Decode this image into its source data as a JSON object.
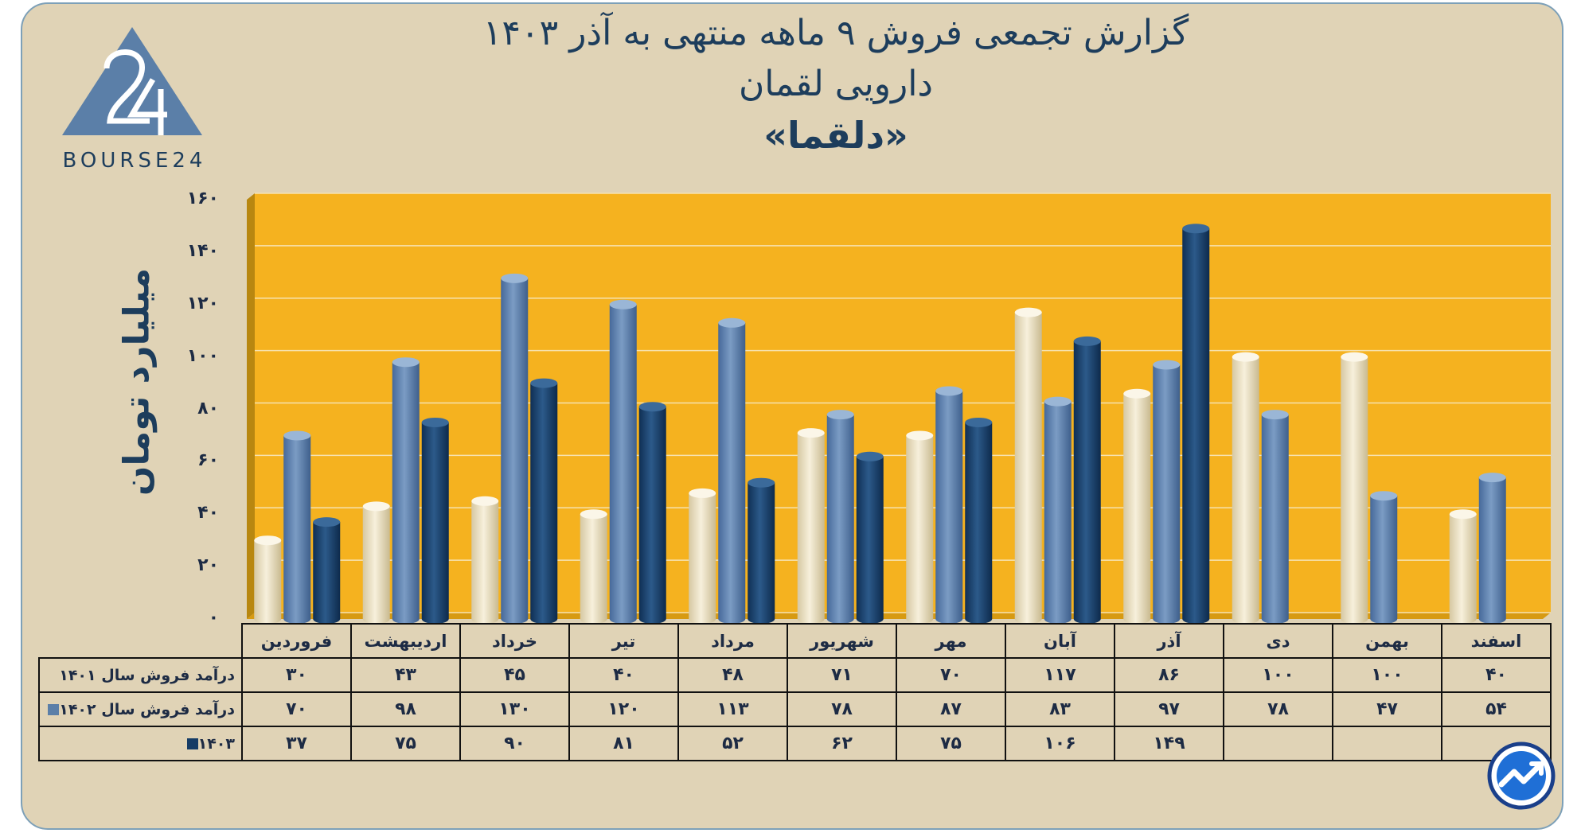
{
  "title": {
    "line1": "گزارش تجمعی فروش ۹ ماهه منتهی به آذر ۱۴۰۳",
    "line2": "دارویی لقمان",
    "line3": "«دلقما»"
  },
  "logo": {
    "text": "BOURSE24",
    "mark": "24",
    "icon": "triangle-logo-icon"
  },
  "colors": {
    "background": "#e0d3b6",
    "plot": "#f5b21f",
    "s1401": "#ece1c2",
    "s1402": "#5b7fa8",
    "s1403": "#153c66"
  },
  "chart_data": {
    "type": "bar",
    "ylabel": "میلیارد تومان",
    "ylim": [
      0,
      160
    ],
    "yticks": [
      "۰",
      "۲۰",
      "۴۰",
      "۶۰",
      "۸۰",
      "۱۰۰",
      "۱۲۰",
      "۱۴۰",
      "۱۶۰"
    ],
    "grid": true,
    "categories": [
      "فروردین",
      "اردیبهشت",
      "خرداد",
      "تیر",
      "مرداد",
      "شهریور",
      "مهر",
      "آبان",
      "آذر",
      "دی",
      "بهمن",
      "اسفند"
    ],
    "series": [
      {
        "name": "درآمد فروش سال ۱۴۰۱",
        "color": "#ece1c2",
        "values": [
          30,
          43,
          45,
          40,
          48,
          71,
          70,
          117,
          86,
          100,
          100,
          40
        ],
        "labels": [
          "۳۰",
          "۴۳",
          "۴۵",
          "۴۰",
          "۴۸",
          "۷۱",
          "۷۰",
          "۱۱۷",
          "۸۶",
          "۱۰۰",
          "۱۰۰",
          "۴۰"
        ]
      },
      {
        "name": "درآمد فروش سال ۱۴۰۲",
        "color": "#5b7fa8",
        "values": [
          70,
          98,
          130,
          120,
          113,
          78,
          87,
          83,
          97,
          78,
          47,
          54
        ],
        "labels": [
          "۷۰",
          "۹۸",
          "۱۳۰",
          "۱۲۰",
          "۱۱۳",
          "۷۸",
          "۸۷",
          "۸۳",
          "۹۷",
          "۷۸",
          "۴۷",
          "۵۴"
        ]
      },
      {
        "name": "۱۴۰۳",
        "color": "#153c66",
        "values": [
          37,
          75,
          90,
          81,
          52,
          62,
          75,
          106,
          149,
          null,
          null,
          null
        ],
        "labels": [
          "۳۷",
          "۷۵",
          "۹۰",
          "۸۱",
          "۵۲",
          "۶۲",
          "۷۵",
          "۱۰۶",
          "۱۴۹",
          "",
          "",
          ""
        ]
      }
    ]
  }
}
